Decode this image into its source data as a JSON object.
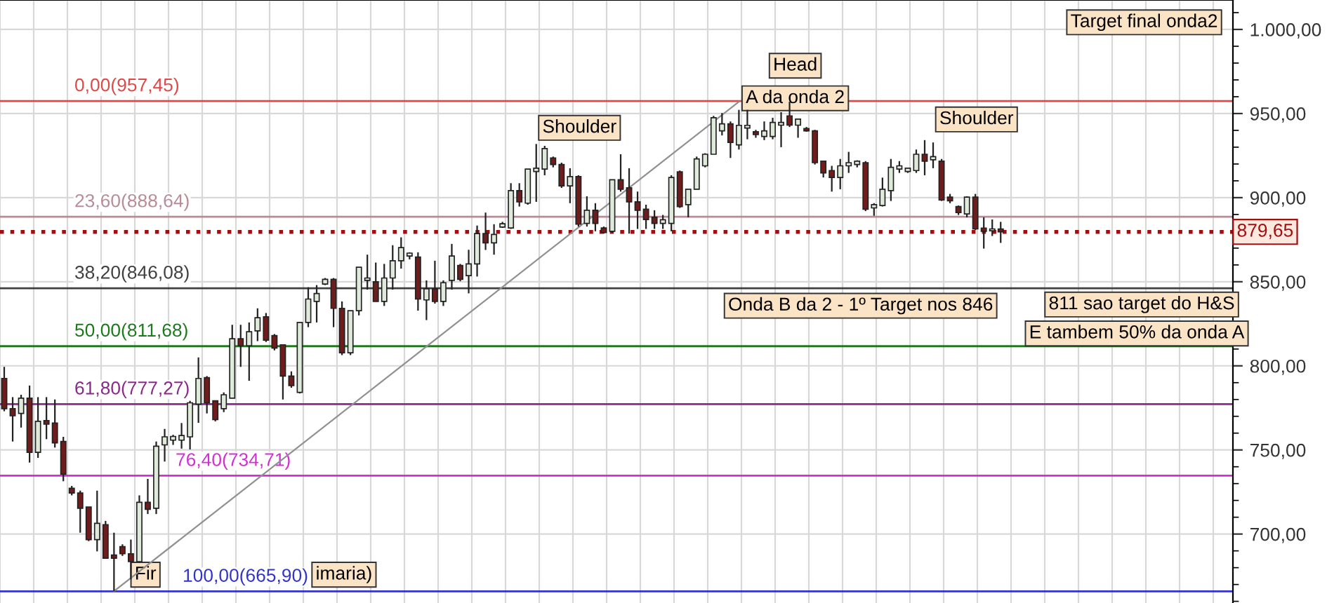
{
  "chart_data": {
    "type": "candlestick",
    "categories": [
      null,
      null,
      null,
      null,
      null,
      null,
      null,
      null,
      null,
      null,
      null,
      null,
      null,
      null,
      null,
      null,
      null,
      null,
      null,
      null,
      null,
      null,
      null,
      null,
      null,
      null,
      null,
      null,
      null,
      null,
      null,
      null,
      null,
      null,
      null,
      null,
      null,
      null,
      null,
      null,
      null,
      null,
      null,
      null,
      null,
      null,
      null,
      null,
      null,
      null,
      null,
      null,
      null,
      null,
      null,
      null,
      null,
      null,
      null,
      null,
      null,
      null,
      null,
      null,
      null,
      null,
      null,
      null,
      null,
      null,
      null,
      null,
      null,
      null,
      null,
      null,
      null,
      null,
      null,
      null,
      null,
      null,
      null,
      null,
      null,
      null,
      null,
      null,
      null,
      null,
      null,
      null,
      null,
      null,
      null,
      null,
      null,
      null,
      null,
      null,
      null,
      null,
      null,
      null,
      null,
      null,
      null,
      null,
      null,
      null,
      null,
      null,
      null,
      null,
      null,
      null,
      null,
      null,
      null,
      null,
      null,
      null,
      null,
      null,
      null,
      null,
      null,
      null,
      null,
      null,
      null,
      null,
      null,
      null,
      null,
      null,
      null,
      null,
      null,
      null,
      null,
      null,
      null,
      null,
      null,
      null
    ],
    "ohlc": [
      [
        792.5,
        799.4,
        773,
        774.5
      ],
      [
        774.5,
        781.4,
        755,
        770.3
      ],
      [
        771.7,
        782.8,
        763.3,
        780.8
      ],
      [
        780.8,
        788.3,
        742.5,
        748.6
      ],
      [
        748.6,
        781.4,
        745.3,
        767
      ],
      [
        767.5,
        781.4,
        756.4,
        765.3
      ],
      [
        766,
        780,
        751.4,
        754.2
      ],
      [
        755,
        757.8,
        731.4,
        735.6
      ],
      [
        727.2,
        728.6,
        723,
        724.4
      ],
      [
        724.4,
        725.8,
        700.8,
        715.3
      ],
      [
        716.1,
        716.1,
        695.8,
        696.7
      ],
      [
        696.7,
        725.8,
        689.7,
        706.4
      ],
      [
        705.6,
        707.8,
        685.6,
        685.6
      ],
      [
        687.5,
        700.8,
        665.9,
        685.6
      ],
      [
        692.5,
        693.9,
        687,
        688.3
      ],
      [
        688.3,
        696.7,
        673.1,
        683.6
      ],
      [
        683.6,
        723,
        682.8,
        718.9
      ],
      [
        718.9,
        732.8,
        711.9,
        714.7
      ],
      [
        715.3,
        755,
        711.9,
        752.2
      ],
      [
        753,
        762.5,
        743.1,
        757.8
      ],
      [
        755.8,
        759,
        753,
        758
      ],
      [
        755.8,
        766,
        750.8,
        758.6
      ],
      [
        757.8,
        779.2,
        750.3,
        778
      ],
      [
        777.2,
        805,
        766.1,
        792.5
      ],
      [
        793,
        793.9,
        771.7,
        778
      ],
      [
        779.2,
        779.2,
        767,
        768
      ],
      [
        774.5,
        784.2,
        772.5,
        782.8
      ],
      [
        780.8,
        824.4,
        780.8,
        816.1
      ],
      [
        816.1,
        824.4,
        799.4,
        812
      ],
      [
        812,
        825.8,
        791.1,
        820.3
      ],
      [
        820.8,
        834.2,
        814.7,
        828.6
      ],
      [
        829.2,
        831.4,
        814.2,
        815.3
      ],
      [
        818,
        818.9,
        809.2,
        810.6
      ],
      [
        812.5,
        812.5,
        780,
        793.9
      ],
      [
        793.9,
        796.7,
        787,
        788.3
      ],
      [
        784.2,
        825.8,
        783.6,
        825.8
      ],
      [
        825.8,
        846.7,
        823,
        839.7
      ],
      [
        838.3,
        848,
        825.8,
        843
      ],
      [
        848.6,
        852.2,
        848,
        851.4
      ],
      [
        851.4,
        852.2,
        823,
        834.2
      ],
      [
        834.2,
        838.3,
        806.4,
        807.8
      ],
      [
        807.8,
        832.8,
        806.4,
        832.8
      ],
      [
        832.8,
        858.6,
        830,
        858.6
      ],
      [
        850.8,
        866.1,
        845.3,
        852.2
      ],
      [
        850,
        861.4,
        838.3,
        838.3
      ],
      [
        838.3,
        860.6,
        835.6,
        852.2
      ],
      [
        852.2,
        871.7,
        845.3,
        862.5
      ],
      [
        862.5,
        876.4,
        857.8,
        870.3
      ],
      [
        865.3,
        867.5,
        863.3,
        867
      ],
      [
        864.7,
        867.5,
        832.8,
        839.7
      ],
      [
        839.2,
        850.8,
        827.2,
        845.8
      ],
      [
        845.8,
        862.5,
        837,
        838.3
      ],
      [
        838.3,
        850.8,
        835.6,
        849.4
      ],
      [
        850.8,
        872.5,
        845.3,
        865.3
      ],
      [
        859.7,
        860.6,
        850.3,
        851.4
      ],
      [
        853.6,
        869,
        843.1,
        860.6
      ],
      [
        860.6,
        883.4,
        853.1,
        878.6
      ],
      [
        878.6,
        891.1,
        868.9,
        873.1
      ],
      [
        873.1,
        884.2,
        866.1,
        878.1
      ],
      [
        882.5,
        885.6,
        882,
        884.5
      ],
      [
        882,
        908.6,
        881.4,
        904.2
      ],
      [
        904.2,
        908.6,
        894.7,
        897.5
      ],
      [
        896.7,
        917,
        895.8,
        917
      ],
      [
        915.5,
        931.9,
        897.5,
        917.5
      ],
      [
        917,
        930.8,
        913.3,
        929.2
      ],
      [
        923.6,
        924.4,
        918,
        919.7
      ],
      [
        919.7,
        920.8,
        905.8,
        907
      ],
      [
        907,
        917.5,
        896.7,
        912.5
      ],
      [
        912.5,
        913.3,
        882.8,
        884.2
      ],
      [
        884.7,
        900.8,
        882.8,
        892.5
      ],
      [
        892.5,
        896.7,
        880,
        884.7
      ],
      [
        882,
        882.8,
        878.6,
        879.2
      ],
      [
        880,
        910.6,
        879.2,
        910.6
      ],
      [
        910.6,
        925.8,
        903.6,
        905
      ],
      [
        905.8,
        917.5,
        878.6,
        897.5
      ],
      [
        897.5,
        903.6,
        881.4,
        892.5
      ],
      [
        893.1,
        895.8,
        881.4,
        887
      ],
      [
        888.3,
        892.5,
        881.4,
        884.7
      ],
      [
        884.7,
        889.7,
        881.4,
        886.9
      ],
      [
        884.7,
        913.3,
        880,
        912
      ],
      [
        915.3,
        916.1,
        893.9,
        894.7
      ],
      [
        895.8,
        905,
        888.3,
        905
      ],
      [
        905,
        924.4,
        905,
        923
      ],
      [
        918.9,
        926.4,
        918,
        925.8
      ],
      [
        925.8,
        948.6,
        925.8,
        947.5
      ],
      [
        939.7,
        950.3,
        937,
        943.9
      ],
      [
        943.9,
        945.3,
        923.6,
        932.8
      ],
      [
        931.4,
        952.2,
        928.6,
        943
      ],
      [
        941.4,
        952.2,
        934.7,
        943
      ],
      [
        939.2,
        940.3,
        935.6,
        937.5
      ],
      [
        936.4,
        945.3,
        934.2,
        939.7
      ],
      [
        936.4,
        947.5,
        934.7,
        944.7
      ],
      [
        943.1,
        950.8,
        930,
        944.7
      ],
      [
        948.6,
        957,
        942,
        943.1
      ],
      [
        943.1,
        946.7,
        935.6,
        946.7
      ],
      [
        941.1,
        942,
        939.2,
        939.7
      ],
      [
        939.7,
        940.3,
        919.7,
        920.8
      ],
      [
        921.7,
        921.7,
        912,
        914.7
      ],
      [
        916.1,
        918.9,
        903.6,
        912
      ],
      [
        912,
        923,
        905,
        918.9
      ],
      [
        918.9,
        927.2,
        914.7,
        920.8
      ],
      [
        919.7,
        922.2,
        918,
        921.7
      ],
      [
        920.8,
        921.7,
        892,
        893.1
      ],
      [
        893.9,
        896.7,
        889.2,
        895.8
      ],
      [
        895.3,
        911.9,
        894.7,
        905
      ],
      [
        904.2,
        923,
        898,
        918
      ],
      [
        917,
        921.7,
        914.7,
        918.9
      ],
      [
        915.5,
        917.5,
        914.7,
        917.5
      ],
      [
        916.1,
        928.6,
        914.7,
        925.8
      ],
      [
        925.8,
        934.2,
        913.3,
        921.7
      ],
      [
        922.5,
        932.8,
        917.5,
        924.4
      ],
      [
        921.7,
        923,
        898,
        898.6
      ],
      [
        900.3,
        902.2,
        896.7,
        898.1
      ],
      [
        894.7,
        895.3,
        889.7,
        891.1
      ],
      [
        890.3,
        900.8,
        888.3,
        900.3
      ],
      [
        900.3,
        902.2,
        880.8,
        881.4
      ],
      [
        881.9,
        888.3,
        869.7,
        880
      ],
      [
        880.3,
        887,
        877.2,
        881.4
      ],
      [
        881.4,
        885.6,
        873.1,
        879.65
      ],
      null,
      null,
      null,
      null,
      null,
      null,
      null,
      null,
      null,
      null,
      null,
      null,
      null,
      null,
      null,
      null,
      null,
      null,
      null,
      null,
      null,
      null,
      null,
      null,
      null,
      null,
      null
    ],
    "series": [
      {
        "type": "line",
        "color": "#909090",
        "values": [
          null,
          null,
          null,
          null,
          null,
          null,
          null,
          null,
          null,
          null,
          null,
          null,
          null,
          666,
          null,
          null,
          null,
          null,
          null,
          null,
          null,
          null,
          null,
          null,
          null,
          null,
          null,
          null,
          null,
          null,
          null,
          null,
          null,
          null,
          null,
          null,
          null,
          null,
          null,
          null,
          null,
          null,
          null,
          null,
          null,
          null,
          null,
          null,
          null,
          null,
          null,
          null,
          null,
          null,
          null,
          null,
          null,
          null,
          null,
          null,
          null,
          null,
          null,
          null,
          null,
          null,
          null,
          null,
          null,
          null,
          null,
          null,
          null,
          null,
          null,
          null,
          null,
          null,
          null,
          null,
          null,
          null,
          null,
          null,
          null,
          null,
          null,
          957,
          null,
          null,
          null,
          null,
          null,
          null,
          null,
          null,
          null,
          null,
          null,
          null,
          null,
          null,
          null,
          null,
          null,
          null,
          null,
          null,
          null,
          null,
          null,
          null,
          null,
          null,
          null,
          null,
          null,
          null,
          null,
          null,
          null,
          null,
          null,
          null,
          null,
          null,
          null,
          null,
          null,
          null,
          null,
          null,
          null,
          null,
          null,
          null,
          null,
          null,
          null,
          null,
          null,
          null,
          null,
          null,
          null,
          null
        ]
      }
    ],
    "ylim": [
      659,
      1017.5
    ],
    "yticks": [
      {
        "value": 700,
        "label": "700,00"
      },
      {
        "value": 750,
        "label": "750,00"
      },
      {
        "value": 800,
        "label": "800,00"
      },
      {
        "value": 850,
        "label": "850,00"
      },
      {
        "value": 900,
        "label": "900,00"
      },
      {
        "value": 950,
        "label": "950,00"
      },
      {
        "value": 1000,
        "label": "1.000,00"
      }
    ],
    "ref_lines": [
      {
        "axis": "y",
        "value": 957.45,
        "label": "0,00(957,45)",
        "color": "#e04848"
      },
      {
        "axis": "y",
        "value": 888.64,
        "label": "23,60(888,64)",
        "color": "#b88c96"
      },
      {
        "axis": "y",
        "value": 846.08,
        "label": "38,20(846,08)",
        "color": "#404040"
      },
      {
        "axis": "y",
        "value": 811.68,
        "label": "50,00(811,68)",
        "color": "#1f7a1f"
      },
      {
        "axis": "y",
        "value": 777.27,
        "label": "61,80(777,27)",
        "color": "#8a2a8a"
      },
      {
        "axis": "y",
        "value": 734.71,
        "label": "76,40(734,71)",
        "color": "#d030d0"
      },
      {
        "axis": "y",
        "value": 665.9,
        "label": "100,00(665,90)",
        "color": "#3434c8"
      },
      {
        "axis": "y",
        "value": 879.65,
        "label": "879,65",
        "color": "#a01010",
        "line_style": "dotted"
      }
    ],
    "annotations": [
      "Target final onda2",
      "Head",
      "A da onda 2",
      "Shoulder",
      "Shoulder",
      "Onda B da 2 - 1º Target nos 846",
      "811 sao target do H&S",
      "E tambem 50% da onda A",
      "Fir",
      "imaria)"
    ],
    "grid": true,
    "tick_labels": "y"
  }
}
